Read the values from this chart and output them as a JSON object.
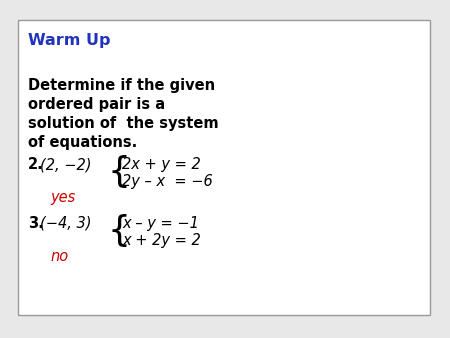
{
  "bg_color": "#e8e8e8",
  "box_color": "#ffffff",
  "box_edge_color": "#999999",
  "title": "Warm Up",
  "title_color": "#2233bb",
  "title_fontsize": 11.5,
  "instruction_line1": "Determine if the given",
  "instruction_line2": "ordered pair is a",
  "instruction_line3": "solution of  the system",
  "instruction_line4": "of equations.",
  "instruction_fontsize": 10.5,
  "prob2_number": "2.",
  "prob2_pair": "(2, −2)",
  "prob2_eq1": "2x + y = 2",
  "prob2_eq2": "2y – x  = −6",
  "prob2_answer": "yes",
  "prob2_answer_color": "#cc0000",
  "prob3_number": "3.",
  "prob3_pair": "(−4, 3)",
  "prob3_eq1": "x – y = −1",
  "prob3_eq2": "x + 2y = 2",
  "prob3_answer": "no",
  "prob3_answer_color": "#cc0000",
  "text_color": "#000000",
  "eq_fontsize": 10.5,
  "prob_fontsize": 10.5
}
